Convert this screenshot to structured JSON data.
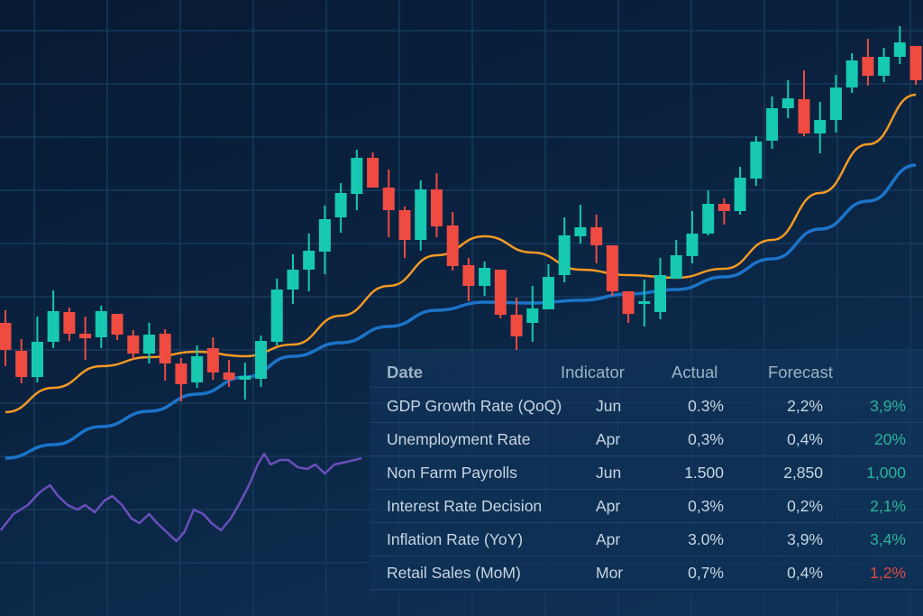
{
  "chart_data": [
    {
      "type": "candlestick",
      "grid": true,
      "colors": {
        "up": "#16c9b0",
        "down": "#ef4b41",
        "ma_fast": "#f59a23",
        "ma_slow": "#1b74c8",
        "oscillator": "#6a4fbb",
        "grid": "#163a5c"
      },
      "candles": [
        {
          "o": 342,
          "h": 356,
          "l": 294,
          "c": 312
        },
        {
          "o": 311,
          "h": 324,
          "l": 275,
          "c": 282
        },
        {
          "o": 282,
          "h": 349,
          "l": 276,
          "c": 321
        },
        {
          "o": 321,
          "h": 378,
          "l": 314,
          "c": 355
        },
        {
          "o": 354,
          "h": 359,
          "l": 322,
          "c": 330
        },
        {
          "o": 330,
          "h": 349,
          "l": 301,
          "c": 325
        },
        {
          "o": 326,
          "h": 361,
          "l": 314,
          "c": 355
        },
        {
          "o": 352,
          "h": 352,
          "l": 323,
          "c": 329
        },
        {
          "o": 328,
          "h": 334,
          "l": 302,
          "c": 308
        },
        {
          "o": 308,
          "h": 342,
          "l": 297,
          "c": 329
        },
        {
          "o": 330,
          "h": 335,
          "l": 278,
          "c": 297
        },
        {
          "o": 297,
          "h": 303,
          "l": 255,
          "c": 274
        },
        {
          "o": 276,
          "h": 317,
          "l": 270,
          "c": 305
        },
        {
          "o": 314,
          "h": 326,
          "l": 279,
          "c": 287
        },
        {
          "o": 287,
          "h": 301,
          "l": 271,
          "c": 279
        },
        {
          "o": 279,
          "h": 298,
          "l": 257,
          "c": 283
        },
        {
          "o": 280,
          "h": 328,
          "l": 271,
          "c": 322
        },
        {
          "o": 321,
          "h": 391,
          "l": 317,
          "c": 379
        },
        {
          "o": 379,
          "h": 418,
          "l": 363,
          "c": 401
        },
        {
          "o": 401,
          "h": 441,
          "l": 377,
          "c": 422
        },
        {
          "o": 421,
          "h": 472,
          "l": 396,
          "c": 457
        },
        {
          "o": 459,
          "h": 497,
          "l": 442,
          "c": 486
        },
        {
          "o": 485,
          "h": 534,
          "l": 467,
          "c": 525
        },
        {
          "o": 525,
          "h": 531,
          "l": 492,
          "c": 492
        },
        {
          "o": 492,
          "h": 512,
          "l": 437,
          "c": 467
        },
        {
          "o": 467,
          "h": 471,
          "l": 414,
          "c": 434
        },
        {
          "o": 434,
          "h": 500,
          "l": 422,
          "c": 490
        },
        {
          "o": 490,
          "h": 508,
          "l": 437,
          "c": 449
        },
        {
          "o": 450,
          "h": 465,
          "l": 400,
          "c": 405
        },
        {
          "o": 406,
          "h": 414,
          "l": 366,
          "c": 383
        },
        {
          "o": 383,
          "h": 410,
          "l": 372,
          "c": 403
        },
        {
          "o": 401,
          "h": 401,
          "l": 347,
          "c": 351
        },
        {
          "o": 351,
          "h": 370,
          "l": 312,
          "c": 327
        },
        {
          "o": 342,
          "h": 383,
          "l": 321,
          "c": 358
        },
        {
          "o": 357,
          "h": 407,
          "l": 357,
          "c": 393
        },
        {
          "o": 395,
          "h": 459,
          "l": 387,
          "c": 439
        },
        {
          "o": 438,
          "h": 473,
          "l": 430,
          "c": 448
        },
        {
          "o": 448,
          "h": 462,
          "l": 408,
          "c": 428
        },
        {
          "o": 428,
          "h": 428,
          "l": 372,
          "c": 377
        },
        {
          "o": 377,
          "h": 377,
          "l": 342,
          "c": 352
        },
        {
          "o": 365,
          "h": 390,
          "l": 338,
          "c": 366
        },
        {
          "o": 354,
          "h": 414,
          "l": 346,
          "c": 395
        },
        {
          "o": 391,
          "h": 434,
          "l": 391,
          "c": 417
        },
        {
          "o": 416,
          "h": 466,
          "l": 408,
          "c": 441
        },
        {
          "o": 441,
          "h": 489,
          "l": 439,
          "c": 474
        },
        {
          "o": 474,
          "h": 480,
          "l": 451,
          "c": 466
        },
        {
          "o": 466,
          "h": 515,
          "l": 462,
          "c": 503
        },
        {
          "o": 502,
          "h": 549,
          "l": 494,
          "c": 543
        },
        {
          "o": 544,
          "h": 593,
          "l": 535,
          "c": 580
        },
        {
          "o": 580,
          "h": 611,
          "l": 569,
          "c": 591
        },
        {
          "o": 590,
          "h": 622,
          "l": 549,
          "c": 552
        },
        {
          "o": 552,
          "h": 587,
          "l": 530,
          "c": 567
        },
        {
          "o": 567,
          "h": 617,
          "l": 553,
          "c": 603
        },
        {
          "o": 603,
          "h": 641,
          "l": 597,
          "c": 633
        },
        {
          "o": 637,
          "h": 657,
          "l": 605,
          "c": 616
        },
        {
          "o": 616,
          "h": 647,
          "l": 609,
          "c": 637
        },
        {
          "o": 637,
          "h": 671,
          "l": 629,
          "c": 653
        },
        {
          "o": 649,
          "h": 649,
          "l": 606,
          "c": 611
        }
      ],
      "moving_averages": [
        {
          "index": [
            0,
            3,
            6,
            9,
            12,
            15,
            18,
            21,
            24,
            27,
            30,
            33,
            36,
            39,
            42,
            45,
            48,
            51,
            54,
            57
          ],
          "values": [
            243,
            270,
            294,
            304,
            310,
            305,
            318,
            350,
            383,
            417,
            438,
            420,
            401,
            395,
            392,
            402,
            434,
            486,
            540,
            595
          ]
        },
        {
          "index": [
            0,
            3,
            6,
            9,
            12,
            15,
            18,
            21,
            24,
            27,
            30,
            33,
            36,
            39,
            42,
            45,
            48,
            51,
            54,
            57
          ],
          "values": [
            192,
            207,
            227,
            244,
            263,
            282,
            305,
            320,
            338,
            356,
            365,
            364,
            367,
            374,
            379,
            393,
            413,
            446,
            477,
            517
          ]
        }
      ],
      "oscillator": {
        "index": [
          -0.3,
          0.5,
          1.4,
          2.2,
          2.8,
          3.3,
          3.9,
          4.5,
          5.0,
          5.6,
          6.2,
          6.7,
          7.3,
          7.9,
          8.4,
          9.0,
          9.5,
          10.1,
          10.7,
          11.2,
          11.8,
          12.4,
          12.9,
          13.5,
          14.1,
          14.6,
          15.2,
          15.8,
          16.2,
          16.6,
          17.2,
          17.7,
          18.3,
          18.9,
          19.4,
          20.0,
          20.6,
          21.4,
          22.3
        ],
        "values": [
          112,
          130,
          140,
          155,
          162,
          150,
          140,
          135,
          140,
          132,
          145,
          150,
          140,
          125,
          120,
          130,
          120,
          110,
          100,
          110,
          135,
          130,
          120,
          112,
          125,
          140,
          160,
          185,
          197,
          185,
          190,
          190,
          182,
          180,
          185,
          175,
          185,
          188,
          192
        ]
      }
    }
  ],
  "table": {
    "headers": [
      "Date",
      "Indicator",
      "Actual",
      "Forecast"
    ],
    "rows": [
      {
        "name": "GDP Growth Rate (QoQ)",
        "period": "Jun",
        "actual": "0.3%",
        "forecast": "2,2%",
        "previous": "3,9%",
        "trend": "up"
      },
      {
        "name": "Unemployment Rate",
        "period": "Apr",
        "actual": "0,3%",
        "forecast": "0,4%",
        "previous": "20%",
        "trend": "up"
      },
      {
        "name": "Non Farm Payrolls",
        "period": "Jun",
        "actual": "1.500",
        "forecast": "2,850",
        "previous": "1,000",
        "trend": "up"
      },
      {
        "name": "Interest Rate Decision",
        "period": "Apr",
        "actual": "0,3%",
        "forecast": "0,2%",
        "previous": "2,1%",
        "trend": "up"
      },
      {
        "name": "Inflation Rate (YoY)",
        "period": "Apr",
        "actual": "3.0%",
        "forecast": "3,9%",
        "previous": "3,4%",
        "trend": "up"
      },
      {
        "name": "Retail Sales (MoM)",
        "period": "Mor",
        "actual": "0,7%",
        "forecast": "0,4%",
        "previous": "1,2%",
        "trend": "down"
      }
    ],
    "colors": {
      "up": "#2bb39b",
      "down": "#e0483e"
    }
  }
}
